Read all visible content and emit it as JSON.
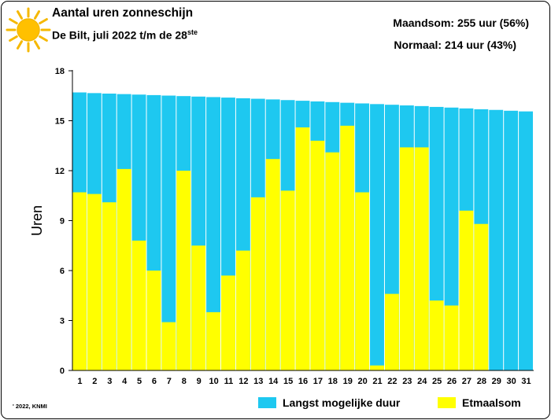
{
  "header": {
    "title": "Aantal uren zonneschijn",
    "subtitle": "De Bilt, juli 2022 t/m de 28",
    "subtitle_sup": "ste",
    "stat_monthly": "Maandsom: 255 uur (56%)",
    "stat_normal": "Normaal: 214 uur (43%)"
  },
  "credit": "' 2022, KNMI",
  "icon": "sun-icon",
  "colors": {
    "max_duration": "#1ec8f0",
    "daily_sum": "#ffff00",
    "sun_rays": "#f5b800",
    "sun_core": "#ffc000"
  },
  "chart_data": {
    "type": "bar",
    "categories": [
      "1",
      "2",
      "3",
      "4",
      "5",
      "6",
      "7",
      "8",
      "9",
      "10",
      "11",
      "12",
      "13",
      "14",
      "15",
      "16",
      "17",
      "18",
      "19",
      "20",
      "21",
      "22",
      "23",
      "24",
      "25",
      "26",
      "27",
      "28",
      "29",
      "30",
      "31"
    ],
    "series": [
      {
        "name": "Langst mogelijke duur",
        "values": [
          16.7,
          16.66,
          16.63,
          16.6,
          16.57,
          16.54,
          16.51,
          16.48,
          16.45,
          16.42,
          16.39,
          16.35,
          16.32,
          16.28,
          16.24,
          16.2,
          16.16,
          16.12,
          16.08,
          16.04,
          16.0,
          15.96,
          15.92,
          15.88,
          15.83,
          15.79,
          15.74,
          15.69,
          15.65,
          15.6,
          15.56
        ]
      },
      {
        "name": "Etmaalsom",
        "values": [
          10.7,
          10.6,
          10.1,
          12.1,
          7.8,
          6.0,
          2.9,
          12.0,
          7.5,
          3.5,
          5.7,
          7.2,
          10.4,
          12.7,
          10.8,
          14.6,
          13.8,
          13.1,
          14.7,
          10.7,
          0.3,
          4.6,
          13.4,
          13.4,
          4.2,
          3.9,
          9.6,
          8.8,
          null,
          null,
          null
        ]
      }
    ],
    "ylabel": "Uren",
    "xlabel": "",
    "ylim": [
      0,
      18
    ],
    "yticks": [
      0,
      3,
      6,
      9,
      12,
      15,
      18
    ],
    "grid": false,
    "legend": "bottom-right"
  }
}
